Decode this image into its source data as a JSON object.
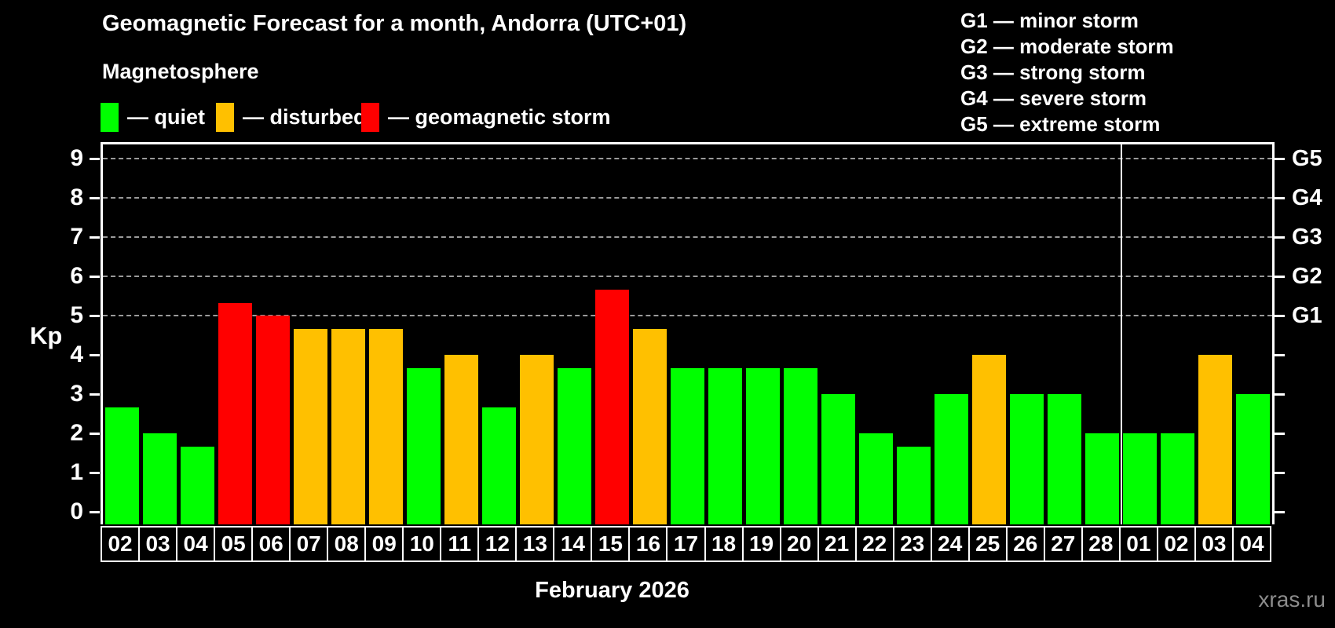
{
  "title": "Geomagnetic Forecast for a month, Andorra (UTC+01)",
  "subtitle": "Magnetosphere",
  "legend": {
    "items": [
      {
        "key": "quiet",
        "label": "— quiet",
        "color": "#00ff00"
      },
      {
        "key": "disturbed",
        "label": "— disturbed",
        "color": "#ffc000"
      },
      {
        "key": "storm",
        "label": "— geomagnetic storm",
        "color": "#ff0000"
      }
    ]
  },
  "g_legend": [
    "G1 — minor storm",
    "G2 — moderate storm",
    "G3 — strong storm",
    "G4 — severe storm",
    "G5 — extreme storm"
  ],
  "axes": {
    "y_label": "Kp",
    "y_ticks": [
      0,
      1,
      2,
      3,
      4,
      5,
      6,
      7,
      8,
      9
    ],
    "right_labels": [
      {
        "kp": 5,
        "label": "G1"
      },
      {
        "kp": 6,
        "label": "G2"
      },
      {
        "kp": 7,
        "label": "G3"
      },
      {
        "kp": 8,
        "label": "G4"
      },
      {
        "kp": 9,
        "label": "G5"
      }
    ],
    "x_label": "February 2026"
  },
  "watermark": "xras.ru",
  "chart_data": {
    "type": "bar",
    "title": "Geomagnetic Forecast for a month, Andorra (UTC+01)",
    "xlabel": "February 2026",
    "ylabel": "Kp",
    "ylim": [
      0,
      9
    ],
    "gridlines_at": [
      5,
      6,
      7,
      8,
      9
    ],
    "legend_position": "top",
    "categories": [
      "02",
      "03",
      "04",
      "05",
      "06",
      "07",
      "08",
      "09",
      "10",
      "11",
      "12",
      "13",
      "14",
      "15",
      "16",
      "17",
      "18",
      "19",
      "20",
      "21",
      "22",
      "23",
      "24",
      "25",
      "26",
      "27",
      "28",
      "01",
      "02",
      "03",
      "04"
    ],
    "values": [
      2.67,
      2,
      1.67,
      5.33,
      5,
      4.67,
      4.67,
      4.67,
      3.67,
      4,
      2.67,
      4,
      3.67,
      5.67,
      4.67,
      3.67,
      3.67,
      3.67,
      3.67,
      3,
      2,
      1.67,
      3,
      4,
      3,
      3,
      2,
      2,
      2,
      4,
      3
    ],
    "statuses": [
      "quiet",
      "quiet",
      "quiet",
      "storm",
      "storm",
      "disturbed",
      "disturbed",
      "disturbed",
      "quiet",
      "disturbed",
      "quiet",
      "disturbed",
      "quiet",
      "storm",
      "disturbed",
      "quiet",
      "quiet",
      "quiet",
      "quiet",
      "quiet",
      "quiet",
      "quiet",
      "quiet",
      "disturbed",
      "quiet",
      "quiet",
      "quiet",
      "quiet",
      "quiet",
      "disturbed",
      "quiet"
    ],
    "month_separator_after_index": 26,
    "status_colors": {
      "quiet": "#00ff00",
      "disturbed": "#ffc000",
      "storm": "#ff0000"
    }
  }
}
